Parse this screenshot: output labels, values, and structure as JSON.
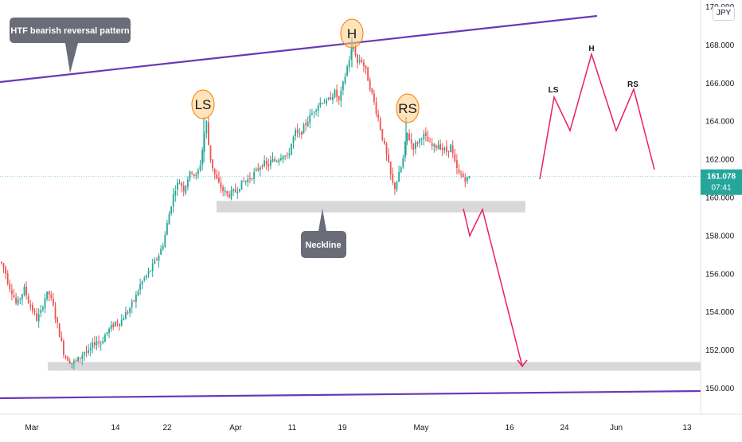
{
  "chart_data": {
    "type": "candlestick",
    "currency": "JPY",
    "ylim": [
      148.7,
      170.2
    ],
    "y_ticks": [
      "170.000",
      "168.000",
      "166.000",
      "164.000",
      "162.000",
      "160.000",
      "158.000",
      "156.000",
      "154.000",
      "152.000",
      "150.000"
    ],
    "x_ticks": [
      "Mar",
      "14",
      "22",
      "Apr",
      "11",
      "19",
      "May",
      "16",
      "24",
      "Jun",
      "13"
    ],
    "last_price": "161.078",
    "countdown": "07:41",
    "colors": {
      "up": "#26a69a",
      "down": "#ef5350",
      "trendline": "#673ab7",
      "projection": "#e91e63",
      "zone": "#d1d1d1",
      "callout": "#6a6d78",
      "circle_fill": "#ffcc80",
      "circle_stroke": "#f57c00",
      "price_label": "#26a69a"
    },
    "price_path": [
      [
        0,
        156.6
      ],
      [
        5,
        156.2
      ],
      [
        10,
        155.4
      ],
      [
        15,
        155.0
      ],
      [
        20,
        154.3
      ],
      [
        25,
        154.8
      ],
      [
        30,
        155.2
      ],
      [
        35,
        154.5
      ],
      [
        40,
        154.1
      ],
      [
        45,
        153.6
      ],
      [
        50,
        153.9
      ],
      [
        55,
        154.7
      ],
      [
        60,
        155.0
      ],
      [
        65,
        154.4
      ],
      [
        70,
        153.5
      ],
      [
        75,
        152.6
      ],
      [
        80,
        151.7
      ],
      [
        85,
        151.5
      ],
      [
        90,
        151.3
      ],
      [
        95,
        151.4
      ],
      [
        100,
        151.6
      ],
      [
        105,
        151.9
      ],
      [
        110,
        151.8
      ],
      [
        115,
        152.2
      ],
      [
        120,
        152.5
      ],
      [
        125,
        152.3
      ],
      [
        130,
        152.7
      ],
      [
        135,
        153.0
      ],
      [
        140,
        153.2
      ],
      [
        145,
        153.5
      ],
      [
        150,
        153.4
      ],
      [
        155,
        153.8
      ],
      [
        160,
        154.0
      ],
      [
        165,
        154.4
      ],
      [
        170,
        154.8
      ],
      [
        175,
        155.4
      ],
      [
        180,
        155.7
      ],
      [
        185,
        156.0
      ],
      [
        190,
        156.3
      ],
      [
        195,
        156.7
      ],
      [
        200,
        157.1
      ],
      [
        205,
        157.7
      ],
      [
        210,
        158.8
      ],
      [
        215,
        159.8
      ],
      [
        220,
        160.6
      ],
      [
        225,
        160.8
      ],
      [
        230,
        160.4
      ],
      [
        235,
        161.0
      ],
      [
        240,
        161.4
      ],
      [
        245,
        161.0
      ],
      [
        250,
        161.6
      ],
      [
        255,
        163.0
      ],
      [
        258,
        164.1
      ],
      [
        262,
        162.3
      ],
      [
        266,
        161.6
      ],
      [
        270,
        161.0
      ],
      [
        275,
        160.6
      ],
      [
        280,
        160.3
      ],
      [
        285,
        160.1
      ],
      [
        290,
        160.2
      ],
      [
        295,
        160.3
      ],
      [
        300,
        160.6
      ],
      [
        305,
        160.8
      ],
      [
        310,
        160.9
      ],
      [
        315,
        161.1
      ],
      [
        320,
        161.3
      ],
      [
        325,
        161.6
      ],
      [
        330,
        161.8
      ],
      [
        335,
        161.6
      ],
      [
        340,
        161.9
      ],
      [
        345,
        161.9
      ],
      [
        350,
        162.1
      ],
      [
        355,
        162.3
      ],
      [
        360,
        162.0
      ],
      [
        365,
        162.8
      ],
      [
        370,
        163.4
      ],
      [
        375,
        163.2
      ],
      [
        380,
        163.6
      ],
      [
        385,
        164.0
      ],
      [
        390,
        164.3
      ],
      [
        395,
        164.7
      ],
      [
        400,
        164.9
      ],
      [
        405,
        165.1
      ],
      [
        410,
        164.9
      ],
      [
        415,
        165.3
      ],
      [
        420,
        165.5
      ],
      [
        425,
        165.0
      ],
      [
        430,
        165.9
      ],
      [
        435,
        166.8
      ],
      [
        440,
        167.6
      ],
      [
        444,
        167.9
      ],
      [
        448,
        167.0
      ],
      [
        452,
        167.3
      ],
      [
        456,
        166.9
      ],
      [
        460,
        166.4
      ],
      [
        465,
        165.6
      ],
      [
        470,
        164.8
      ],
      [
        475,
        164.0
      ],
      [
        480,
        163.0
      ],
      [
        485,
        162.1
      ],
      [
        490,
        161.1
      ],
      [
        494,
        160.4
      ],
      [
        498,
        160.9
      ],
      [
        502,
        161.4
      ],
      [
        506,
        162.1
      ],
      [
        510,
        163.4
      ],
      [
        514,
        163.0
      ],
      [
        518,
        162.6
      ],
      [
        522,
        162.8
      ],
      [
        526,
        163.0
      ],
      [
        530,
        163.3
      ],
      [
        535,
        163.0
      ],
      [
        540,
        162.7
      ],
      [
        545,
        162.6
      ],
      [
        550,
        162.8
      ],
      [
        555,
        162.5
      ],
      [
        560,
        162.4
      ],
      [
        565,
        162.7
      ],
      [
        570,
        161.8
      ],
      [
        575,
        161.2
      ],
      [
        580,
        161.1
      ],
      [
        585,
        160.9
      ],
      [
        590,
        161.1
      ]
    ],
    "annotations": {
      "circles": [
        "LS",
        "H",
        "RS"
      ],
      "callouts": [
        "HTF bearish reversal pattern",
        "Neckline"
      ],
      "projection_labels": [
        "LS",
        "H",
        "RS"
      ]
    }
  }
}
